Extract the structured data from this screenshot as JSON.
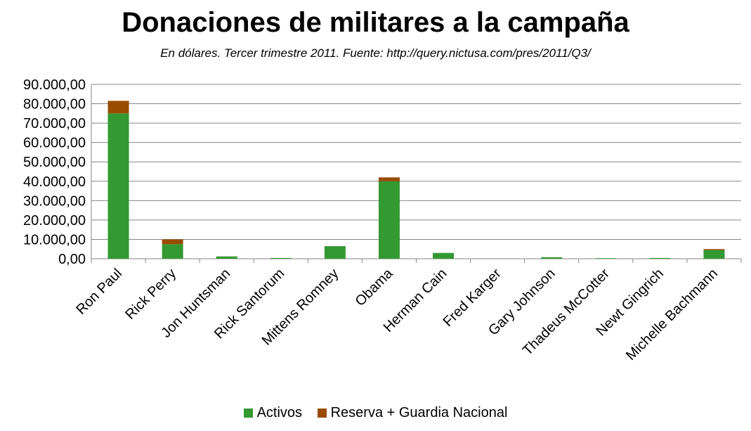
{
  "chart_data": {
    "type": "bar",
    "stacked": true,
    "title": "Donaciones de militares a la campaña",
    "subtitle": "En dólares. Tercer trimestre 2011. Fuente: http://query.nictusa.com/pres/2011/Q3/",
    "xlabel": "",
    "ylabel": "",
    "ylim": [
      0,
      90000
    ],
    "yticks": [
      0,
      10000,
      20000,
      30000,
      40000,
      50000,
      60000,
      70000,
      80000,
      90000
    ],
    "ytick_labels": [
      "0,00",
      "10.000,00",
      "20.000,00",
      "30.000,00",
      "40.000,00",
      "50.000,00",
      "60.000,00",
      "70.000,00",
      "80.000,00",
      "90.000,00"
    ],
    "grid": true,
    "legend_position": "bottom",
    "categories": [
      "Ron Paul",
      "Rick Perry",
      "Jon Huntsman",
      "Rick Santorum",
      "Mittens Romney",
      "Obama",
      "Herman Cain",
      "Fred Karger",
      "Gary Johnson",
      "Thadeus McCotter",
      "Newt Gingrich",
      "Michelle Bachmann"
    ],
    "series": [
      {
        "name": "Activos",
        "color": "#339933",
        "values": [
          75000,
          7500,
          1200,
          400,
          6500,
          40000,
          3000,
          0,
          800,
          300,
          400,
          4500
        ]
      },
      {
        "name": "Reserva + Guardia Nacional",
        "color": "#994C00",
        "values": [
          6500,
          2500,
          0,
          0,
          0,
          2000,
          0,
          0,
          0,
          0,
          0,
          500
        ]
      }
    ]
  }
}
